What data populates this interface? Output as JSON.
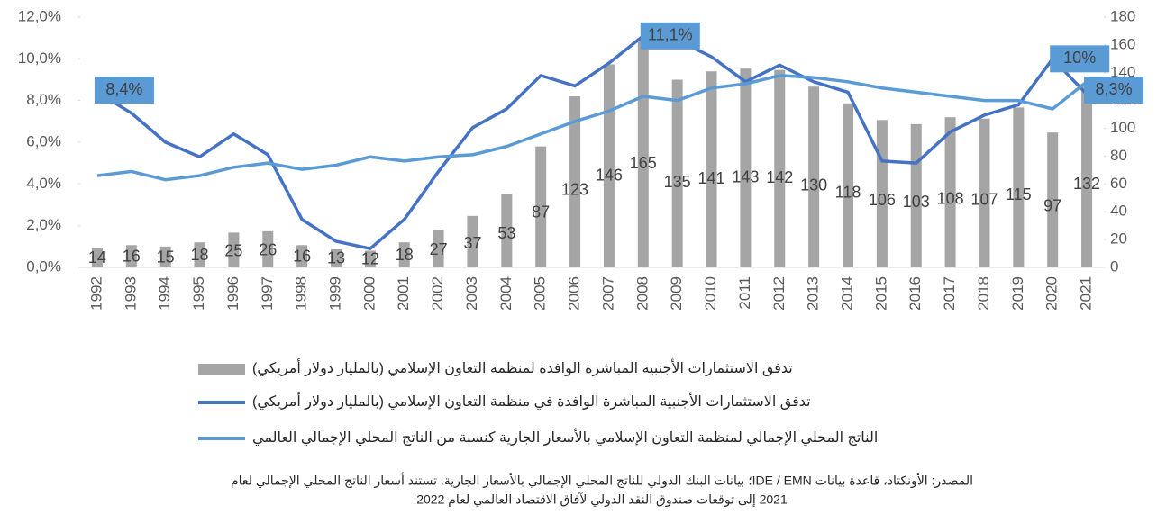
{
  "chart_data": {
    "type": "bar_line",
    "categories": [
      "1992",
      "1993",
      "1994",
      "1995",
      "1996",
      "1997",
      "1998",
      "1999",
      "2000",
      "2001",
      "2002",
      "2003",
      "2004",
      "2005",
      "2006",
      "2007",
      "2008",
      "2009",
      "2010",
      "2011",
      "2012",
      "2013",
      "2014",
      "2015",
      "2016",
      "2017",
      "2018",
      "2019",
      "2020",
      "2021"
    ],
    "series": [
      {
        "name": "تدفق الاستثمارات الأجنبية المباشرة الوافدة لمنظمة التعاون الإسلامي (بالمليار دولار أمريكي)",
        "kind": "bar",
        "axis": "y2",
        "color": "#a5a5a5",
        "values": [
          14,
          16,
          15,
          18,
          25,
          26,
          16,
          13,
          12,
          18,
          27,
          37,
          53,
          87,
          123,
          146,
          165,
          135,
          141,
          143,
          142,
          130,
          118,
          106,
          103,
          108,
          107,
          115,
          97,
          132
        ]
      },
      {
        "name": "تدفق الاستثمارات الأجنبية المباشرة الوافدة في منظمة التعاون الإسلامي (بالمليار دولار أمريكي)",
        "kind": "line",
        "axis": "y",
        "color": "#4472c4",
        "values": [
          8.4,
          7.4,
          6.0,
          5.3,
          6.4,
          5.4,
          2.3,
          1.25,
          0.9,
          2.3,
          4.6,
          6.7,
          7.6,
          9.2,
          8.7,
          9.8,
          11.1,
          10.9,
          10.1,
          8.9,
          9.7,
          8.9,
          8.4,
          5.1,
          5.0,
          6.5,
          7.3,
          7.8,
          10.0,
          8.3
        ],
        "value_labels": [
          "8,4%",
          null,
          null,
          null,
          null,
          null,
          null,
          null,
          null,
          null,
          null,
          null,
          null,
          null,
          null,
          null,
          "11,1%",
          null,
          null,
          null,
          null,
          null,
          null,
          null,
          null,
          null,
          null,
          null,
          "10%",
          "8,3%"
        ]
      },
      {
        "name": "الناتج المحلي الإجمالي لمنظمة التعاون الإسلامي بالأسعار الجارية كنسبة من الناتج المحلي الإجمالي العالمي",
        "kind": "line",
        "axis": "y",
        "color": "#5b9bd5",
        "values": [
          4.4,
          4.6,
          4.2,
          4.4,
          4.8,
          5.0,
          4.7,
          4.9,
          5.3,
          5.1,
          5.3,
          5.4,
          5.8,
          6.4,
          7.0,
          7.5,
          8.2,
          8.0,
          8.6,
          8.8,
          9.2,
          9.1,
          8.9,
          8.6,
          8.4,
          8.2,
          8.0,
          8.0,
          7.6,
          8.9
        ]
      }
    ],
    "ylim": [
      0,
      12
    ],
    "yticks": [
      {
        "value": 0,
        "label": "0,0%"
      },
      {
        "value": 2,
        "label": "2,0%"
      },
      {
        "value": 4,
        "label": "4,0%"
      },
      {
        "value": 6,
        "label": "6,0%"
      },
      {
        "value": 8,
        "label": "8,0%"
      },
      {
        "value": 10,
        "label": "10,0%"
      },
      {
        "value": 12,
        "label": "12,0%"
      }
    ],
    "y2lim": [
      0,
      180
    ],
    "y2ticks": [
      0,
      20,
      40,
      60,
      80,
      100,
      120,
      140,
      160,
      180
    ],
    "source": [
      "المصدر: الأونكتاد، قاعدة بيانات IDE / EMN؛ بيانات البنك الدولي للناتج المحلي الإجمالي بالأسعار الجارية. تستند أسعار الناتج المحلي الإجمالي لعام",
      "2021 إلى توقعات صندوق النقد الدولي لآفاق الاقتصاد العالمي لعام 2022"
    ]
  }
}
